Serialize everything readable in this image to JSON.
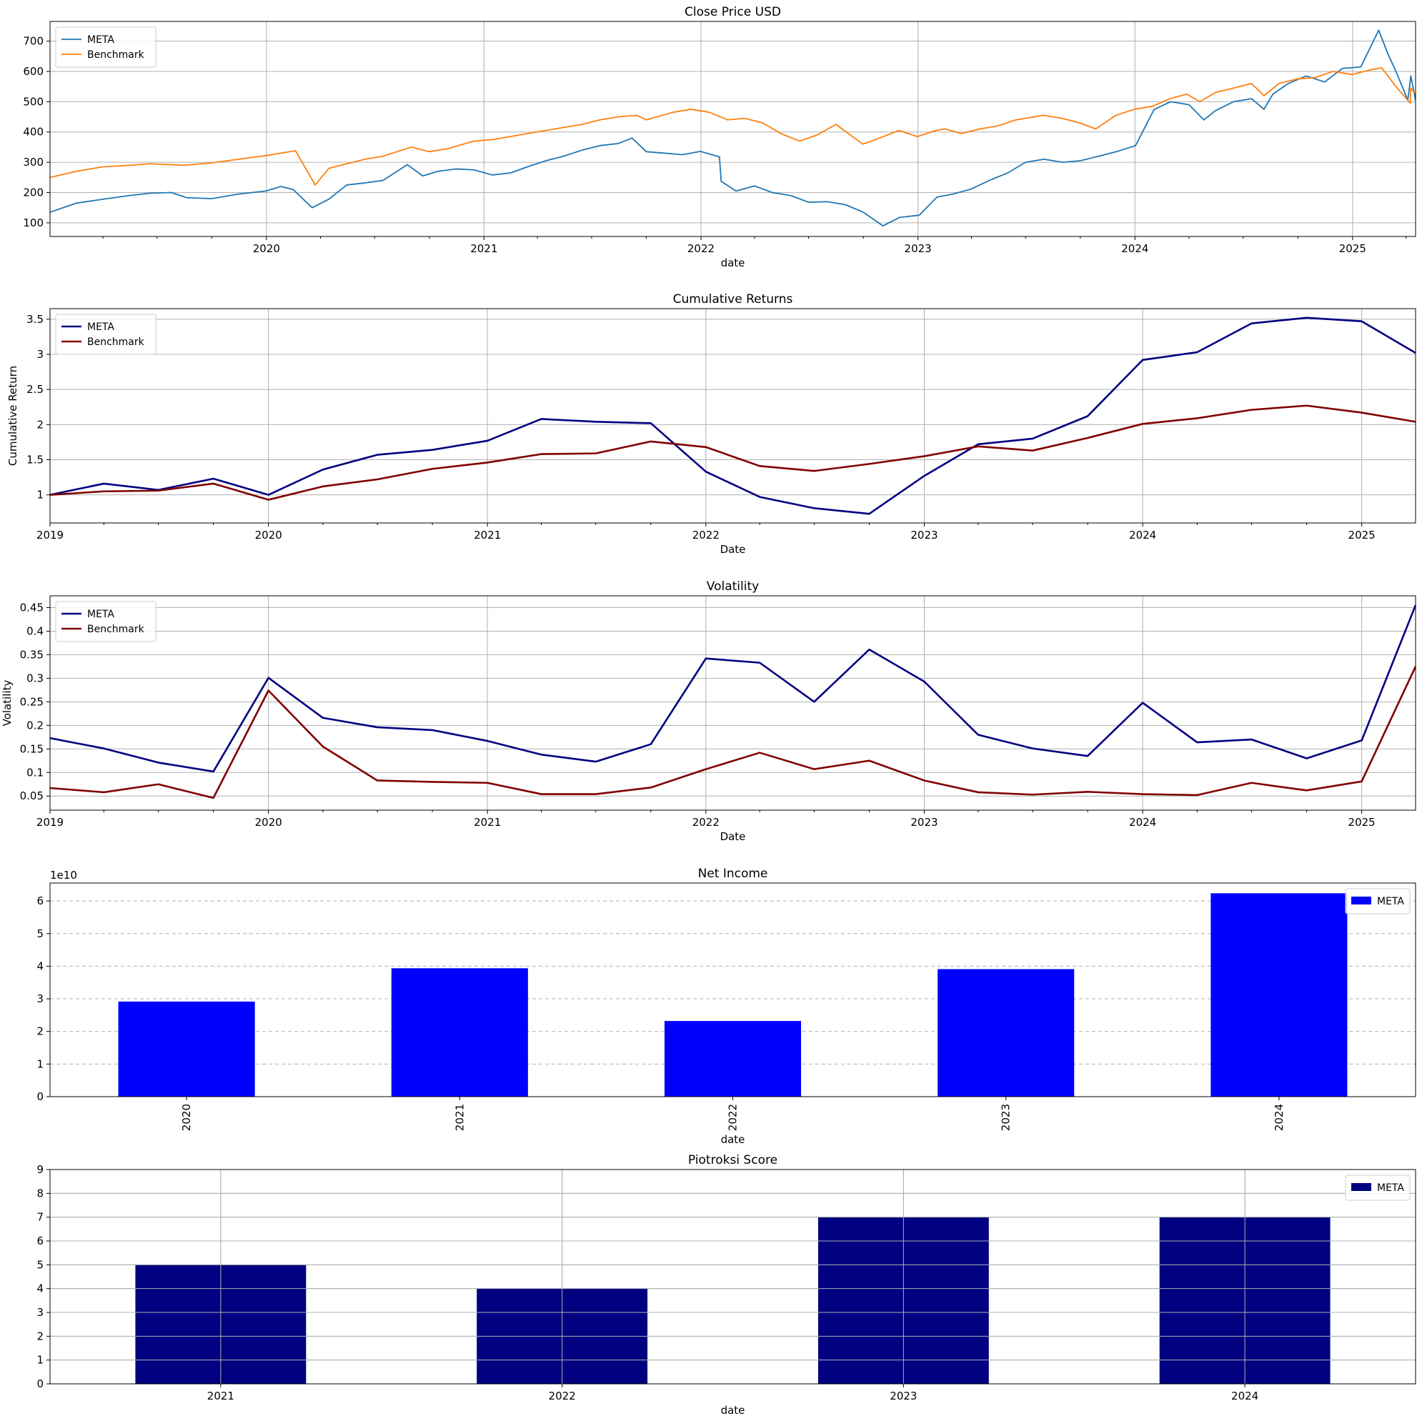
{
  "chart_data": [
    {
      "type": "line",
      "title": "Close Price USD",
      "xlabel": "date",
      "ylabel": "",
      "x_range": [
        "2019-01-02",
        "2025-04-17"
      ],
      "ylim": [
        55,
        765
      ],
      "yticks": [
        100,
        200,
        300,
        400,
        500,
        600,
        700
      ],
      "xticks": [
        "2020",
        "2021",
        "2022",
        "2023",
        "2024",
        "2025"
      ],
      "grid": true,
      "legend": "top-left",
      "series": [
        {
          "name": "META",
          "color": "#1f77b4",
          "points": [
            [
              "2019-01-02",
              135
            ],
            [
              "2019-02-15",
              165
            ],
            [
              "2019-04-01",
              178
            ],
            [
              "2019-05-15",
              190
            ],
            [
              "2019-06-20",
              198
            ],
            [
              "2019-07-25",
              200
            ],
            [
              "2019-08-20",
              183
            ],
            [
              "2019-10-01",
              180
            ],
            [
              "2019-11-15",
              195
            ],
            [
              "2019-12-31",
              205
            ],
            [
              "2020-01-25",
              220
            ],
            [
              "2020-02-15",
              210
            ],
            [
              "2020-03-18",
              150
            ],
            [
              "2020-04-15",
              178
            ],
            [
              "2020-05-15",
              225
            ],
            [
              "2020-06-15",
              232
            ],
            [
              "2020-07-15",
              240
            ],
            [
              "2020-08-25",
              292
            ],
            [
              "2020-09-20",
              255
            ],
            [
              "2020-10-15",
              270
            ],
            [
              "2020-11-15",
              278
            ],
            [
              "2020-12-15",
              275
            ],
            [
              "2021-01-15",
              258
            ],
            [
              "2021-02-15",
              265
            ],
            [
              "2021-03-15",
              285
            ],
            [
              "2021-04-15",
              305
            ],
            [
              "2021-05-15",
              320
            ],
            [
              "2021-06-15",
              340
            ],
            [
              "2021-07-15",
              355
            ],
            [
              "2021-08-15",
              362
            ],
            [
              "2021-09-07",
              380
            ],
            [
              "2021-10-01",
              335
            ],
            [
              "2021-11-01",
              330
            ],
            [
              "2021-12-01",
              325
            ],
            [
              "2021-12-31",
              336
            ],
            [
              "2022-02-01",
              318
            ],
            [
              "2022-02-04",
              237
            ],
            [
              "2022-03-01",
              205
            ],
            [
              "2022-04-01",
              222
            ],
            [
              "2022-05-01",
              200
            ],
            [
              "2022-06-01",
              190
            ],
            [
              "2022-07-01",
              168
            ],
            [
              "2022-08-01",
              170
            ],
            [
              "2022-09-01",
              160
            ],
            [
              "2022-10-01",
              135
            ],
            [
              "2022-11-03",
              90
            ],
            [
              "2022-12-01",
              118
            ],
            [
              "2023-01-03",
              125
            ],
            [
              "2023-02-02",
              185
            ],
            [
              "2023-03-01",
              195
            ],
            [
              "2023-04-01",
              212
            ],
            [
              "2023-05-01",
              240
            ],
            [
              "2023-06-01",
              265
            ],
            [
              "2023-07-01",
              300
            ],
            [
              "2023-08-01",
              310
            ],
            [
              "2023-09-01",
              300
            ],
            [
              "2023-10-01",
              305
            ],
            [
              "2023-11-01",
              320
            ],
            [
              "2023-12-01",
              335
            ],
            [
              "2024-01-02",
              355
            ],
            [
              "2024-02-02",
              474
            ],
            [
              "2024-03-01",
              500
            ],
            [
              "2024-04-01",
              490
            ],
            [
              "2024-04-26",
              440
            ],
            [
              "2024-05-15",
              470
            ],
            [
              "2024-06-15",
              500
            ],
            [
              "2024-07-15",
              510
            ],
            [
              "2024-08-05",
              475
            ],
            [
              "2024-08-20",
              525
            ],
            [
              "2024-09-15",
              560
            ],
            [
              "2024-10-15",
              585
            ],
            [
              "2024-11-15",
              565
            ],
            [
              "2024-12-15",
              610
            ],
            [
              "2025-01-15",
              615
            ],
            [
              "2025-02-14",
              736
            ],
            [
              "2025-03-01",
              660
            ],
            [
              "2025-03-15",
              600
            ],
            [
              "2025-04-04",
              505
            ],
            [
              "2025-04-09",
              585
            ],
            [
              "2025-04-17",
              505
            ]
          ]
        },
        {
          "name": "Benchmark",
          "color": "#ff7f0e",
          "points": [
            [
              "2019-01-02",
              250
            ],
            [
              "2019-02-15",
              270
            ],
            [
              "2019-04-01",
              285
            ],
            [
              "2019-05-15",
              290
            ],
            [
              "2019-06-20",
              295
            ],
            [
              "2019-08-15",
              290
            ],
            [
              "2019-10-01",
              298
            ],
            [
              "2019-11-15",
              310
            ],
            [
              "2019-12-31",
              322
            ],
            [
              "2020-02-19",
              338
            ],
            [
              "2020-03-23",
              225
            ],
            [
              "2020-04-15",
              280
            ],
            [
              "2020-05-15",
              295
            ],
            [
              "2020-06-15",
              310
            ],
            [
              "2020-07-15",
              320
            ],
            [
              "2020-09-01",
              350
            ],
            [
              "2020-10-01",
              335
            ],
            [
              "2020-11-01",
              345
            ],
            [
              "2020-12-15",
              370
            ],
            [
              "2021-01-15",
              375
            ],
            [
              "2021-02-15",
              385
            ],
            [
              "2021-03-15",
              395
            ],
            [
              "2021-04-15",
              405
            ],
            [
              "2021-05-15",
              415
            ],
            [
              "2021-06-15",
              425
            ],
            [
              "2021-07-15",
              440
            ],
            [
              "2021-08-15",
              450
            ],
            [
              "2021-09-15",
              455
            ],
            [
              "2021-10-01",
              440
            ],
            [
              "2021-11-15",
              465
            ],
            [
              "2021-12-15",
              475
            ],
            [
              "2022-01-15",
              465
            ],
            [
              "2022-02-15",
              440
            ],
            [
              "2022-03-15",
              445
            ],
            [
              "2022-04-15",
              430
            ],
            [
              "2022-05-15",
              395
            ],
            [
              "2022-06-16",
              370
            ],
            [
              "2022-07-15",
              390
            ],
            [
              "2022-08-16",
              425
            ],
            [
              "2022-09-30",
              360
            ],
            [
              "2022-10-15",
              370
            ],
            [
              "2022-11-30",
              405
            ],
            [
              "2022-12-31",
              385
            ],
            [
              "2023-01-31",
              405
            ],
            [
              "2023-02-15",
              410
            ],
            [
              "2023-03-15",
              395
            ],
            [
              "2023-04-15",
              410
            ],
            [
              "2023-05-15",
              420
            ],
            [
              "2023-06-15",
              440
            ],
            [
              "2023-07-31",
              455
            ],
            [
              "2023-08-31",
              445
            ],
            [
              "2023-09-30",
              430
            ],
            [
              "2023-10-27",
              410
            ],
            [
              "2023-11-30",
              455
            ],
            [
              "2023-12-31",
              475
            ],
            [
              "2024-01-31",
              485
            ],
            [
              "2024-02-29",
              510
            ],
            [
              "2024-03-28",
              525
            ],
            [
              "2024-04-19",
              500
            ],
            [
              "2024-05-15",
              530
            ],
            [
              "2024-06-15",
              545
            ],
            [
              "2024-07-15",
              560
            ],
            [
              "2024-08-05",
              520
            ],
            [
              "2024-08-30",
              560
            ],
            [
              "2024-09-30",
              575
            ],
            [
              "2024-10-31",
              580
            ],
            [
              "2024-11-29",
              600
            ],
            [
              "2024-12-31",
              590
            ],
            [
              "2025-01-31",
              605
            ],
            [
              "2025-02-19",
              612
            ],
            [
              "2025-03-13",
              555
            ],
            [
              "2025-04-08",
              495
            ],
            [
              "2025-04-09",
              545
            ],
            [
              "2025-04-17",
              525
            ]
          ]
        }
      ]
    },
    {
      "type": "line",
      "title": "Cumulative Returns",
      "xlabel": "Date",
      "ylabel": "Cumulative Return",
      "x_range": [
        "2019-01-01",
        "2025-04-01"
      ],
      "ylim": [
        0.6,
        3.65
      ],
      "yticks": [
        1.0,
        1.5,
        2.0,
        2.5,
        3.0,
        3.5
      ],
      "xticks": [
        "2019",
        "2020",
        "2021",
        "2022",
        "2023",
        "2024",
        "2025"
      ],
      "grid": true,
      "legend": "top-left",
      "dates": [
        "2019-01-01",
        "2019-04-01",
        "2019-07-01",
        "2019-10-01",
        "2020-01-01",
        "2020-04-01",
        "2020-07-01",
        "2020-10-01",
        "2021-01-01",
        "2021-04-01",
        "2021-07-01",
        "2021-10-01",
        "2022-01-01",
        "2022-04-01",
        "2022-07-01",
        "2022-10-01",
        "2023-01-01",
        "2023-04-01",
        "2023-07-01",
        "2023-10-01",
        "2024-01-01",
        "2024-04-01",
        "2024-07-01",
        "2024-10-01",
        "2025-01-01",
        "2025-04-01"
      ],
      "series": [
        {
          "name": "META",
          "color": "#000080",
          "values": [
            1.0,
            1.16,
            1.07,
            1.23,
            1.0,
            1.36,
            1.57,
            1.64,
            1.77,
            2.08,
            2.04,
            2.02,
            1.33,
            0.97,
            0.81,
            0.73,
            1.27,
            1.72,
            1.8,
            2.12,
            2.92,
            3.03,
            3.44,
            3.52,
            3.47,
            3.02
          ]
        },
        {
          "name": "Benchmark",
          "color": "#800000",
          "values": [
            1.0,
            1.05,
            1.06,
            1.16,
            0.93,
            1.12,
            1.22,
            1.37,
            1.46,
            1.58,
            1.59,
            1.76,
            1.68,
            1.41,
            1.34,
            1.44,
            1.55,
            1.69,
            1.63,
            1.81,
            2.01,
            2.09,
            2.21,
            2.27,
            2.17,
            2.04
          ]
        }
      ]
    },
    {
      "type": "line",
      "title": "Volatility",
      "xlabel": "Date",
      "ylabel": "Volatility",
      "x_range": [
        "2019-01-01",
        "2025-04-01"
      ],
      "ylim": [
        0.02,
        0.475
      ],
      "yticks": [
        0.05,
        0.1,
        0.15,
        0.2,
        0.25,
        0.3,
        0.35,
        0.4,
        0.45
      ],
      "xticks": [
        "2019",
        "2020",
        "2021",
        "2022",
        "2023",
        "2024",
        "2025"
      ],
      "grid": true,
      "legend": "top-left",
      "dates": [
        "2019-01-01",
        "2019-04-01",
        "2019-07-01",
        "2019-10-01",
        "2020-01-01",
        "2020-04-01",
        "2020-07-01",
        "2020-10-01",
        "2021-01-01",
        "2021-04-01",
        "2021-07-01",
        "2021-10-01",
        "2022-01-01",
        "2022-04-01",
        "2022-07-01",
        "2022-10-01",
        "2023-01-01",
        "2023-04-01",
        "2023-07-01",
        "2023-10-01",
        "2024-01-01",
        "2024-04-01",
        "2024-07-01",
        "2024-10-01",
        "2025-01-01",
        "2025-04-01"
      ],
      "series": [
        {
          "name": "META",
          "color": "#000080",
          "values": [
            0.173,
            0.151,
            0.121,
            0.102,
            0.301,
            0.216,
            0.196,
            0.19,
            0.167,
            0.138,
            0.123,
            0.16,
            0.342,
            0.333,
            0.25,
            0.361,
            0.293,
            0.18,
            0.151,
            0.135,
            0.248,
            0.164,
            0.17,
            0.13,
            0.168,
            0.455
          ]
        },
        {
          "name": "Benchmark",
          "color": "#800000",
          "values": [
            0.067,
            0.058,
            0.075,
            0.046,
            0.274,
            0.155,
            0.083,
            0.08,
            0.078,
            0.054,
            0.054,
            0.068,
            0.107,
            0.142,
            0.107,
            0.125,
            0.083,
            0.058,
            0.053,
            0.059,
            0.054,
            0.052,
            0.078,
            0.062,
            0.081,
            0.325
          ]
        }
      ]
    },
    {
      "type": "bar",
      "title": "Net Income",
      "xlabel": "date",
      "ylabel": "",
      "offset_label": "1e10",
      "ylim": [
        0,
        65500000000
      ],
      "yticks": [
        0,
        10000000000,
        20000000000,
        30000000000,
        40000000000,
        50000000000,
        60000000000
      ],
      "ytick_labels": [
        "0",
        "1",
        "2",
        "3",
        "4",
        "5",
        "6"
      ],
      "categories": [
        "2020",
        "2021",
        "2022",
        "2023",
        "2024"
      ],
      "grid": "y-dashed",
      "legend": "top-right",
      "series": [
        {
          "name": "META",
          "color": "#0000ff",
          "values": [
            29150000000,
            39370000000,
            23200000000,
            39100000000,
            62360000000
          ]
        }
      ]
    },
    {
      "type": "bar",
      "title": "Piotroksi Score",
      "xlabel": "date",
      "ylabel": "",
      "ylim": [
        0,
        9
      ],
      "yticks": [
        0,
        1,
        2,
        3,
        4,
        5,
        6,
        7,
        8,
        9
      ],
      "categories": [
        "2021",
        "2022",
        "2023",
        "2024"
      ],
      "grid": true,
      "legend": "top-right",
      "series": [
        {
          "name": "META",
          "color": "#000080",
          "values": [
            5,
            4,
            7,
            7
          ]
        }
      ]
    }
  ]
}
